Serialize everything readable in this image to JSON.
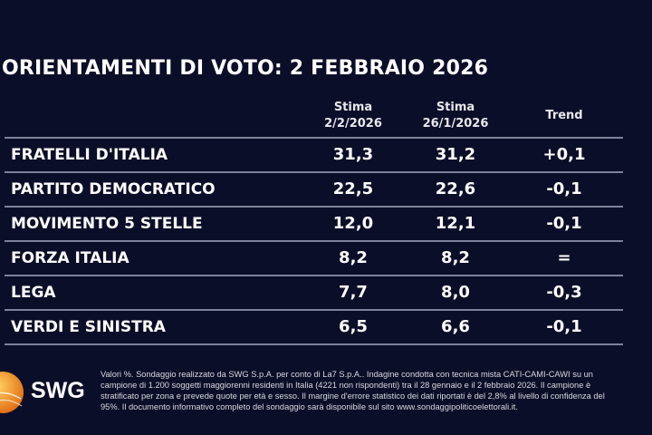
{
  "title": "ORIENTAMENTI DI VOTO: 2 FEBBRAIO 2026",
  "chart_data": {
    "type": "table",
    "title": "ORIENTAMENTI DI VOTO: 2 FEBBRAIO 2026",
    "columns": [
      {
        "line1": "Stima",
        "line2": "2/2/2026"
      },
      {
        "line1": "Stima",
        "line2": "26/1/2026"
      },
      {
        "line1": "Trend",
        "line2": ""
      }
    ],
    "rows": [
      {
        "party": "FRATELLI D'ITALIA",
        "current": "31,3",
        "previous": "31,2",
        "trend": "+0,1"
      },
      {
        "party": "PARTITO DEMOCRATICO",
        "current": "22,5",
        "previous": "22,6",
        "trend": "-0,1"
      },
      {
        "party": "MOVIMENTO 5 STELLE",
        "current": "12,0",
        "previous": "12,1",
        "trend": "-0,1"
      },
      {
        "party": "FORZA ITALIA",
        "current": "8,2",
        "previous": "8,2",
        "trend": "="
      },
      {
        "party": "LEGA",
        "current": "7,7",
        "previous": "8,0",
        "trend": "-0,3"
      },
      {
        "party": "VERDI E SINISTRA",
        "current": "6,5",
        "previous": "6,6",
        "trend": "-0,1"
      }
    ]
  },
  "logo": {
    "text": "SWG",
    "color": "#f08a1c"
  },
  "footnote": "Valori %. Sondaggio realizzato da SWG S.p.A. per conto di La7 S.p.A.. Indagine condotta con tecnica mista CATI-CAMI-CAWI su un campione di 1.200 soggetti maggiorenni residenti in Italia (4221 non rispondenti) tra il 28 gennaio e il 2 febbraio 2026. Il campione è stratificato per zona e prevede quote per età e sesso. Il margine d'errore statistico dei dati riportati è del 2,8% al livello di confidenza del 95%. Il documento informativo completo del sondaggio sarà disponibile sul sito www.sondaggipoliticoelettorali.it.",
  "colors": {
    "background": "#0b0e28",
    "separator": "#7d8199",
    "text": "#ffffff"
  }
}
